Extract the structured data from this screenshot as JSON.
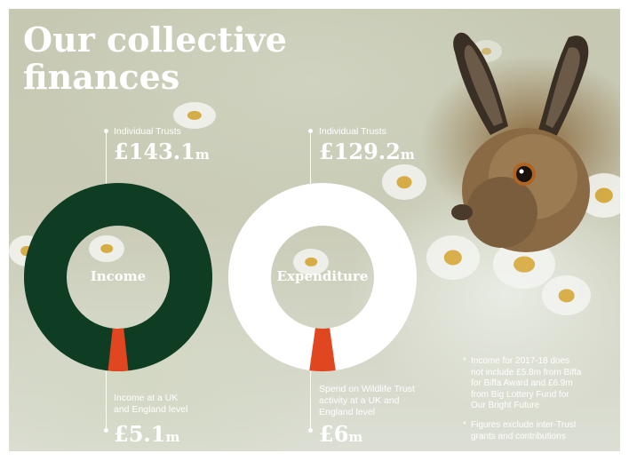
{
  "title": "Our collective finances",
  "income": {
    "top_label": "Individual Trusts",
    "top_value": "£143.1",
    "top_unit": "m",
    "center_label": "Income",
    "bottom_label_line1": "Income at a UK",
    "bottom_label_line2": "and England level",
    "bottom_value": "£5.1",
    "bottom_unit": "m",
    "main_color": "#0f3d23",
    "accent_color": "#e0461f",
    "accent_fraction": 0.0344
  },
  "expenditure": {
    "top_label": "Individual Trusts",
    "top_value": "£129.2",
    "top_unit": "m",
    "center_label": "Expenditure",
    "bottom_label_line1": "Spend on Wildlife Trust",
    "bottom_label_line2": "activity at a UK and",
    "bottom_label_line3": "England level",
    "bottom_value": "£6",
    "bottom_unit": "m",
    "main_color": "#ffffff",
    "accent_color": "#e0461f",
    "accent_fraction": 0.0444
  },
  "notes": [
    {
      "bullet": "*",
      "lines": [
        "Income for 2017-18 does",
        "not include £5.8m from Biffa",
        "for Biffa Award and £6.9m",
        "from Big Lottery Fund for",
        "Our Bright Future"
      ]
    },
    {
      "bullet": "*",
      "lines": [
        "Figures exclude inter-Trust",
        "grants and contributions"
      ]
    }
  ]
}
